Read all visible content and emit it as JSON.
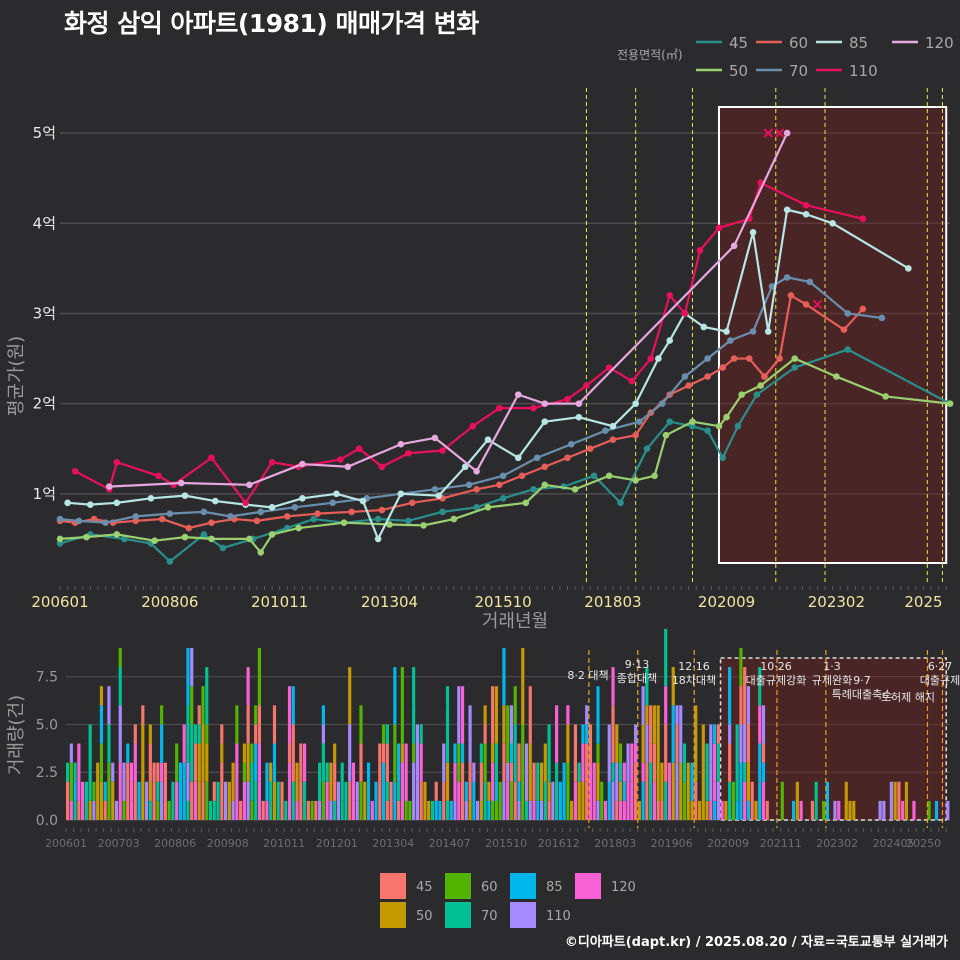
{
  "title": "화정 삼익 아파트(1981) 매매가격 변화",
  "credit": "©디아파트(dapt.kr) / 2025.08.20 / 자료=국토교통부 실거래가",
  "chart_data": [
    {
      "type": "line",
      "name": "price",
      "xlabel": "거래년월",
      "ylabel": "평균가(원)",
      "ylim": [
        0,
        5.5
      ],
      "yticks": [
        {
          "v": 1,
          "label": "1억"
        },
        {
          "v": 2,
          "label": "2억"
        },
        {
          "v": 3,
          "label": "3억"
        },
        {
          "v": 4,
          "label": "4억"
        },
        {
          "v": 5,
          "label": "5억"
        }
      ],
      "xlim": [
        "2006-01",
        "2025-08"
      ],
      "xticks": [
        "200601",
        "200806",
        "201011",
        "201304",
        "201510",
        "201803",
        "202009",
        "202302",
        "2025"
      ],
      "legend_title": "전용면적(㎡)",
      "highlight_box": {
        "from": "2020-07",
        "to": "2025-07"
      },
      "policy_lines": [
        "2017-08",
        "2018-09",
        "2019-12",
        "2021-10",
        "2022-11",
        "2025-02",
        "2025-06"
      ],
      "series": [
        {
          "name": "45",
          "color": "#2a8f8a",
          "points": [
            [
              "2006-01",
              0.45
            ],
            [
              "2006-09",
              0.55
            ],
            [
              "2007-06",
              0.5
            ],
            [
              "2008-01",
              0.45
            ],
            [
              "2008-06",
              0.25
            ],
            [
              "2009-03",
              0.55
            ],
            [
              "2009-08",
              0.4
            ],
            [
              "2010-04",
              0.5
            ],
            [
              "2011-01",
              0.62
            ],
            [
              "2011-08",
              0.72
            ],
            [
              "2012-04",
              0.68
            ],
            [
              "2013-01",
              0.72
            ],
            [
              "2013-09",
              0.7
            ],
            [
              "2014-06",
              0.8
            ],
            [
              "2015-03",
              0.85
            ],
            [
              "2015-10",
              0.95
            ],
            [
              "2016-06",
              1.05
            ],
            [
              "2017-02",
              1.08
            ],
            [
              "2017-10",
              1.2
            ],
            [
              "2018-05",
              0.9
            ],
            [
              "2018-12",
              1.5
            ],
            [
              "2019-06",
              1.8
            ],
            [
              "2019-12",
              1.75
            ],
            [
              "2020-04",
              1.7
            ],
            [
              "2020-08",
              1.4
            ],
            [
              "2020-12",
              1.75
            ],
            [
              "2021-05",
              2.1
            ],
            [
              "2022-03",
              2.4
            ],
            [
              "2023-05",
              2.6
            ],
            [
              "2025-08",
              2.0
            ]
          ]
        },
        {
          "name": "50",
          "color": "#9ad06f",
          "points": [
            [
              "2006-01",
              0.5
            ],
            [
              "2006-08",
              0.52
            ],
            [
              "2007-04",
              0.55
            ],
            [
              "2008-02",
              0.48
            ],
            [
              "2008-10",
              0.52
            ],
            [
              "2009-05",
              0.5
            ],
            [
              "2010-03",
              0.5
            ],
            [
              "2010-06",
              0.35
            ],
            [
              "2010-09",
              0.55
            ],
            [
              "2011-04",
              0.62
            ],
            [
              "2012-04",
              0.68
            ],
            [
              "2013-04",
              0.66
            ],
            [
              "2014-01",
              0.65
            ],
            [
              "2014-09",
              0.72
            ],
            [
              "2015-06",
              0.85
            ],
            [
              "2016-04",
              0.9
            ],
            [
              "2016-09",
              1.1
            ],
            [
              "2017-05",
              1.05
            ],
            [
              "2018-02",
              1.2
            ],
            [
              "2018-09",
              1.15
            ],
            [
              "2019-02",
              1.2
            ],
            [
              "2019-05",
              1.65
            ],
            [
              "2019-12",
              1.8
            ],
            [
              "2020-07",
              1.75
            ],
            [
              "2020-09",
              1.85
            ],
            [
              "2021-01",
              2.1
            ],
            [
              "2021-06",
              2.2
            ],
            [
              "2022-03",
              2.5
            ],
            [
              "2023-02",
              2.3
            ],
            [
              "2024-03",
              2.08
            ],
            [
              "2025-08",
              2.0
            ]
          ]
        },
        {
          "name": "60",
          "color": "#e75d57",
          "points": [
            [
              "2006-01",
              0.7
            ],
            [
              "2006-05",
              0.68
            ],
            [
              "2006-10",
              0.72
            ],
            [
              "2007-03",
              0.68
            ],
            [
              "2007-09",
              0.7
            ],
            [
              "2008-04",
              0.72
            ],
            [
              "2008-11",
              0.62
            ],
            [
              "2009-05",
              0.68
            ],
            [
              "2009-11",
              0.72
            ],
            [
              "2010-05",
              0.7
            ],
            [
              "2011-01",
              0.75
            ],
            [
              "2011-09",
              0.78
            ],
            [
              "2012-06",
              0.8
            ],
            [
              "2013-02",
              0.82
            ],
            [
              "2013-10",
              0.9
            ],
            [
              "2014-06",
              0.95
            ],
            [
              "2015-03",
              1.05
            ],
            [
              "2015-09",
              1.1
            ],
            [
              "2016-03",
              1.2
            ],
            [
              "2016-09",
              1.3
            ],
            [
              "2017-03",
              1.4
            ],
            [
              "2017-09",
              1.5
            ],
            [
              "2018-03",
              1.6
            ],
            [
              "2018-09",
              1.65
            ],
            [
              "2019-01",
              1.9
            ],
            [
              "2019-06",
              2.1
            ],
            [
              "2019-11",
              2.2
            ],
            [
              "2020-04",
              2.3
            ],
            [
              "2020-08",
              2.4
            ],
            [
              "2020-11",
              2.5
            ],
            [
              "2021-03",
              2.5
            ],
            [
              "2021-07",
              2.3
            ],
            [
              "2021-11",
              2.5
            ],
            [
              "2022-02",
              3.2
            ],
            [
              "2022-06",
              3.1
            ],
            [
              "2023-04",
              2.82
            ],
            [
              "2023-09",
              3.05
            ]
          ]
        },
        {
          "name": "70",
          "color": "#6a8fae",
          "points": [
            [
              "2006-01",
              0.72
            ],
            [
              "2006-06",
              0.7
            ],
            [
              "2007-01",
              0.68
            ],
            [
              "2007-09",
              0.75
            ],
            [
              "2008-06",
              0.78
            ],
            [
              "2009-03",
              0.8
            ],
            [
              "2009-10",
              0.75
            ],
            [
              "2010-06",
              0.8
            ],
            [
              "2011-03",
              0.85
            ],
            [
              "2012-01",
              0.9
            ],
            [
              "2012-10",
              0.95
            ],
            [
              "2013-07",
              1.0
            ],
            [
              "2014-04",
              1.05
            ],
            [
              "2015-01",
              1.1
            ],
            [
              "2015-10",
              1.2
            ],
            [
              "2016-07",
              1.4
            ],
            [
              "2017-04",
              1.55
            ],
            [
              "2018-01",
              1.7
            ],
            [
              "2018-10",
              1.8
            ],
            [
              "2019-04",
              2.0
            ],
            [
              "2019-10",
              2.3
            ],
            [
              "2020-04",
              2.5
            ],
            [
              "2020-10",
              2.7
            ],
            [
              "2021-04",
              2.8
            ],
            [
              "2021-09",
              3.3
            ],
            [
              "2022-01",
              3.4
            ],
            [
              "2022-07",
              3.35
            ],
            [
              "2023-05",
              3.0
            ],
            [
              "2024-02",
              2.95
            ]
          ]
        },
        {
          "name": "85",
          "color": "#b7e6e4",
          "points": [
            [
              "2006-03",
              0.9
            ],
            [
              "2006-09",
              0.88
            ],
            [
              "2007-04",
              0.9
            ],
            [
              "2008-01",
              0.95
            ],
            [
              "2008-10",
              0.98
            ],
            [
              "2009-06",
              0.92
            ],
            [
              "2010-02",
              0.88
            ],
            [
              "2010-09",
              0.85
            ],
            [
              "2011-05",
              0.95
            ],
            [
              "2012-02",
              1.0
            ],
            [
              "2012-09",
              0.92
            ],
            [
              "2013-01",
              0.5
            ],
            [
              "2013-07",
              1.0
            ],
            [
              "2014-05",
              0.98
            ],
            [
              "2014-12",
              1.3
            ],
            [
              "2015-06",
              1.6
            ],
            [
              "2016-02",
              1.4
            ],
            [
              "2016-09",
              1.8
            ],
            [
              "2017-06",
              1.85
            ],
            [
              "2018-03",
              1.75
            ],
            [
              "2018-09",
              2.0
            ],
            [
              "2019-03",
              2.5
            ],
            [
              "2019-06",
              2.7
            ],
            [
              "2019-10",
              3.0
            ],
            [
              "2020-03",
              2.85
            ],
            [
              "2020-09",
              2.8
            ],
            [
              "2021-04",
              3.9
            ],
            [
              "2021-08",
              2.8
            ],
            [
              "2022-01",
              4.15
            ],
            [
              "2022-06",
              4.1
            ],
            [
              "2023-01",
              4.0
            ],
            [
              "2024-09",
              3.5
            ]
          ]
        },
        {
          "name": "110",
          "color": "#e8105b",
          "points": [
            [
              "2006-05",
              1.25
            ],
            [
              "2007-02",
              1.05
            ],
            [
              "2007-04",
              1.35
            ],
            [
              "2008-03",
              1.2
            ],
            [
              "2008-07",
              1.1
            ],
            [
              "2009-05",
              1.4
            ],
            [
              "2010-02",
              0.9
            ],
            [
              "2010-09",
              1.35
            ],
            [
              "2011-04",
              1.3
            ],
            [
              "2012-03",
              1.38
            ],
            [
              "2012-08",
              1.5
            ],
            [
              "2013-02",
              1.3
            ],
            [
              "2013-09",
              1.45
            ],
            [
              "2014-06",
              1.48
            ],
            [
              "2015-02",
              1.75
            ],
            [
              "2015-09",
              1.95
            ],
            [
              "2016-06",
              1.95
            ],
            [
              "2017-03",
              2.05
            ],
            [
              "2017-08",
              2.2
            ],
            [
              "2018-02",
              2.4
            ],
            [
              "2018-08",
              2.25
            ],
            [
              "2019-01",
              2.5
            ],
            [
              "2019-06",
              3.2
            ],
            [
              "2019-10",
              3.0
            ],
            [
              "2020-02",
              3.7
            ],
            [
              "2020-07",
              3.95
            ],
            [
              "2021-03",
              4.05
            ],
            [
              "2021-06",
              4.45
            ],
            [
              "2022-06",
              4.2
            ],
            [
              "2023-09",
              4.05
            ]
          ]
        },
        {
          "name": "120",
          "color": "#e7a8e0",
          "points": [
            [
              "2007-02",
              1.08
            ],
            [
              "2008-09",
              1.12
            ],
            [
              "2010-03",
              1.1
            ],
            [
              "2011-05",
              1.33
            ],
            [
              "2012-05",
              1.3
            ],
            [
              "2013-07",
              1.55
            ],
            [
              "2014-04",
              1.62
            ],
            [
              "2015-03",
              1.25
            ],
            [
              "2016-02",
              2.1
            ],
            [
              "2016-09",
              2.0
            ],
            [
              "2017-06",
              2.0
            ],
            [
              "2020-11",
              3.75
            ],
            [
              "2022-01",
              5.0
            ]
          ]
        }
      ]
    },
    {
      "type": "bar",
      "name": "volume",
      "ylabel": "거래량(건)",
      "ylim": [
        0,
        9
      ],
      "yticks": [
        "0.0",
        "2.5",
        "5.0",
        "7.5"
      ],
      "xticks": [
        "200601",
        "200703",
        "200806",
        "200908",
        "201011",
        "201201",
        "201304",
        "201407",
        "201510",
        "201612",
        "201803",
        "201906",
        "202009",
        "202111",
        "202302",
        "202405",
        "20250"
      ],
      "legend_entries": [
        "45",
        "50",
        "60",
        "70",
        "85",
        "110",
        "120"
      ],
      "legend_colors": [
        "#f8766d",
        "#c49a00",
        "#53b400",
        "#00c094",
        "#00b6eb",
        "#a58aff",
        "#fb61d7"
      ],
      "policy_labels": [
        {
          "date": "2017-08",
          "lines": [
            "8·2 대책"
          ]
        },
        {
          "date": "2018-09",
          "lines": [
            "9·13",
            "종합대책"
          ]
        },
        {
          "date": "2019-12",
          "lines": [
            "12·16",
            "18차대책"
          ]
        },
        {
          "date": "2021-10",
          "lines": [
            "10·26",
            "대출규제강화"
          ]
        },
        {
          "date": "2022-11",
          "lines": [
            "1·3",
            "규제완화"
          ]
        },
        {
          "date": "2023-01",
          "lines": [
            "9·7",
            "특례대출축소"
          ]
        },
        {
          "date": "2025-06",
          "lines": [
            "6·27",
            "대출규제"
          ]
        }
      ],
      "policy_label_extra": "토허제 해지"
    }
  ]
}
